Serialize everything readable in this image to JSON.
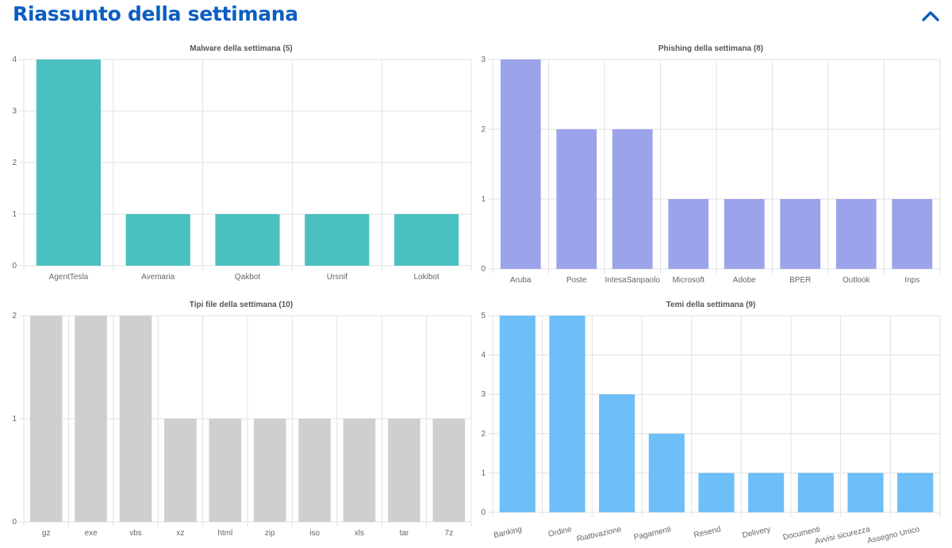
{
  "header": {
    "title": "Riassunto della settimana",
    "collapse_icon": "chevron-up-icon",
    "accent_color": "#0b5ec1"
  },
  "chart_data": [
    {
      "type": "bar",
      "title": "Malware della settimana (5)",
      "categories": [
        "AgentTesla",
        "Avemaria",
        "Qakbot",
        "Ursnif",
        "Lokibot"
      ],
      "values": [
        4,
        1,
        1,
        1,
        1
      ],
      "ylim": [
        0,
        4
      ],
      "yticks": [
        0,
        1,
        2,
        3,
        4
      ],
      "color": "#4bc0c0",
      "xlabel": "",
      "ylabel": "",
      "grid": true,
      "rotated_labels": false
    },
    {
      "type": "bar",
      "title": "Phishing della settimana (8)",
      "categories": [
        "Aruba",
        "Poste",
        "IntesaSanpaolo",
        "Microsoft",
        "Adobe",
        "BPER",
        "Outlook",
        "Inps"
      ],
      "values": [
        3,
        2,
        2,
        1,
        1,
        1,
        1,
        1
      ],
      "ylim": [
        0,
        3
      ],
      "yticks": [
        0,
        1,
        2,
        3
      ],
      "color": "#9ba3eb",
      "xlabel": "",
      "ylabel": "",
      "grid": true,
      "rotated_labels": false
    },
    {
      "type": "bar",
      "title": "Tipi file della settimana (10)",
      "categories": [
        "gz",
        "exe",
        "vbs",
        "xz",
        "html",
        "zip",
        "iso",
        "xls",
        "tar",
        "7z"
      ],
      "values": [
        2,
        2,
        2,
        1,
        1,
        1,
        1,
        1,
        1,
        1
      ],
      "ylim": [
        0,
        2
      ],
      "yticks": [
        0,
        1,
        2
      ],
      "color": "#cfcfd1",
      "xlabel": "",
      "ylabel": "",
      "grid": true,
      "rotated_labels": false
    },
    {
      "type": "bar",
      "title": "Temi della settimana (9)",
      "categories": [
        "Banking",
        "Ordine",
        "Riattivazione",
        "Pagamenti",
        "Resend",
        "Delivery",
        "Documenti",
        "Avvisi sicurezza",
        "Assegno Unico"
      ],
      "values": [
        5,
        5,
        3,
        2,
        1,
        1,
        1,
        1,
        1
      ],
      "ylim": [
        0,
        5
      ],
      "yticks": [
        0,
        1,
        2,
        3,
        4,
        5
      ],
      "color": "#6ebef7",
      "xlabel": "",
      "ylabel": "",
      "grid": true,
      "rotated_labels": true
    }
  ]
}
